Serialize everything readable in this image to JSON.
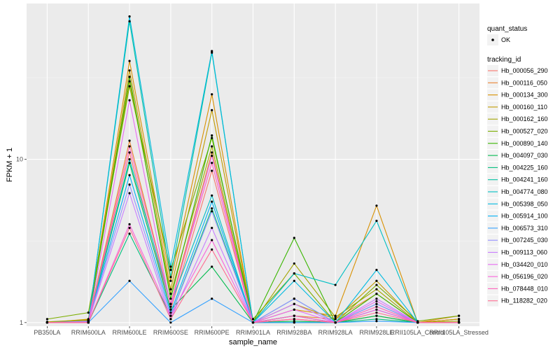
{
  "chart_data": {
    "type": "line",
    "xlabel": "sample_name",
    "ylabel": "FPKM + 1",
    "y_scale": "log10",
    "ylim": [
      0.95,
      90
    ],
    "y_ticks": [
      1,
      10
    ],
    "y_tick_labels": [
      "1",
      "10"
    ],
    "grid": true,
    "background": "#ebebeb",
    "legend_position": "right",
    "categories": [
      "PB350LA",
      "RRIM600LA",
      "RRIM600LE",
      "RRIM600SE",
      "RRIM600PE",
      "RRIM901LA",
      "RRIM928BA",
      "RRIM928LA",
      "RRIM928LE",
      "RRII105LA_Control",
      "RRII105LA_Stressed"
    ],
    "legend_shape": {
      "title": "quant_status",
      "items": [
        {
          "label": "OK",
          "shape": "point"
        }
      ]
    },
    "legend_color_title": "tracking_id",
    "series": [
      {
        "name": "Hb_000056_290",
        "color": "#F8766D",
        "values": [
          1.01,
          1.0,
          11.0,
          1.2,
          8.5,
          1.0,
          1.05,
          1.0,
          1.1,
          1.0,
          1.05
        ]
      },
      {
        "name": "Hb_000116_050",
        "color": "#EA8331",
        "values": [
          1.0,
          1.02,
          13.0,
          1.3,
          11.0,
          1.0,
          1.1,
          1.05,
          1.5,
          1.0,
          1.1
        ]
      },
      {
        "name": "Hb_000134_300",
        "color": "#D89000",
        "values": [
          1.0,
          1.05,
          40.0,
          1.8,
          25.0,
          1.0,
          1.2,
          1.1,
          5.2,
          1.0,
          1.05
        ]
      },
      {
        "name": "Hb_000160_110",
        "color": "#C09B00",
        "values": [
          1.0,
          1.03,
          35.0,
          1.6,
          20.0,
          1.0,
          1.3,
          1.05,
          1.8,
          1.0,
          1.05
        ]
      },
      {
        "name": "Hb_000162_160",
        "color": "#A3A500",
        "values": [
          1.01,
          1.04,
          30.0,
          1.5,
          12.0,
          1.0,
          2.3,
          1.08,
          1.6,
          1.0,
          1.02
        ]
      },
      {
        "name": "Hb_000527_020",
        "color": "#7CAE00",
        "values": [
          1.05,
          1.15,
          28.0,
          2.1,
          13.5,
          1.05,
          2.0,
          1.0,
          1.7,
          1.02,
          1.1
        ]
      },
      {
        "name": "Hb_000890_140",
        "color": "#39B600",
        "values": [
          1.0,
          1.02,
          32.0,
          1.4,
          14.0,
          1.0,
          3.3,
          1.0,
          1.5,
          1.0,
          1.0
        ]
      },
      {
        "name": "Hb_004097_030",
        "color": "#00BB4E",
        "values": [
          1.0,
          1.0,
          9.5,
          1.2,
          2.2,
          1.0,
          1.02,
          1.0,
          1.1,
          1.0,
          1.0
        ]
      },
      {
        "name": "Hb_004225_160",
        "color": "#00BF7D",
        "values": [
          1.0,
          1.0,
          3.5,
          1.1,
          5.0,
          1.0,
          1.0,
          1.0,
          1.05,
          1.0,
          1.0
        ]
      },
      {
        "name": "Hb_004241_160",
        "color": "#00C1A3",
        "values": [
          1.0,
          1.02,
          70.0,
          1.9,
          45.0,
          1.0,
          1.4,
          1.0,
          1.3,
          1.0,
          1.0
        ]
      },
      {
        "name": "Hb_004774_080",
        "color": "#00BFC4",
        "values": [
          1.0,
          1.0,
          10.0,
          1.3,
          6.0,
          1.0,
          2.0,
          1.7,
          4.2,
          1.0,
          1.0
        ]
      },
      {
        "name": "Hb_005398_050",
        "color": "#00BAE0",
        "values": [
          1.0,
          1.0,
          75.0,
          2.2,
          46.0,
          1.0,
          1.8,
          1.0,
          2.1,
          1.0,
          1.0
        ]
      },
      {
        "name": "Hb_005914_100",
        "color": "#00B0F6",
        "values": [
          1.0,
          1.01,
          8.0,
          1.15,
          5.5,
          1.0,
          1.1,
          1.0,
          1.2,
          1.0,
          1.0
        ]
      },
      {
        "name": "Hb_006573_310",
        "color": "#35A2FF",
        "values": [
          1.0,
          1.0,
          1.8,
          1.0,
          1.4,
          1.0,
          1.0,
          1.0,
          1.02,
          1.0,
          1.0
        ]
      },
      {
        "name": "Hb_007245_030",
        "color": "#9590FF",
        "values": [
          1.0,
          1.02,
          7.0,
          1.1,
          4.8,
          1.0,
          1.4,
          1.0,
          1.3,
          1.0,
          1.0
        ]
      },
      {
        "name": "Hb_009113_060",
        "color": "#C77CFF",
        "values": [
          1.0,
          1.01,
          6.2,
          1.05,
          3.8,
          1.0,
          1.3,
          1.0,
          1.4,
          1.0,
          1.0
        ]
      },
      {
        "name": "Hb_034420_010",
        "color": "#E76BF3",
        "values": [
          1.0,
          1.0,
          23.0,
          1.25,
          10.5,
          1.0,
          1.2,
          1.0,
          1.35,
          1.0,
          1.0
        ]
      },
      {
        "name": "Hb_056196_020",
        "color": "#FA62DB",
        "values": [
          1.0,
          1.0,
          4.0,
          1.1,
          3.2,
          1.0,
          1.05,
          1.0,
          1.2,
          1.0,
          1.0
        ]
      },
      {
        "name": "Hb_078448_010",
        "color": "#FF62BC",
        "values": [
          1.0,
          1.0,
          12.0,
          1.3,
          9.5,
          1.0,
          1.1,
          1.0,
          1.25,
          1.0,
          1.0
        ]
      },
      {
        "name": "Hb_118282_020",
        "color": "#FF6C91",
        "values": [
          1.0,
          1.0,
          3.8,
          1.05,
          2.8,
          1.0,
          1.05,
          1.0,
          1.15,
          1.0,
          1.0
        ]
      }
    ]
  }
}
